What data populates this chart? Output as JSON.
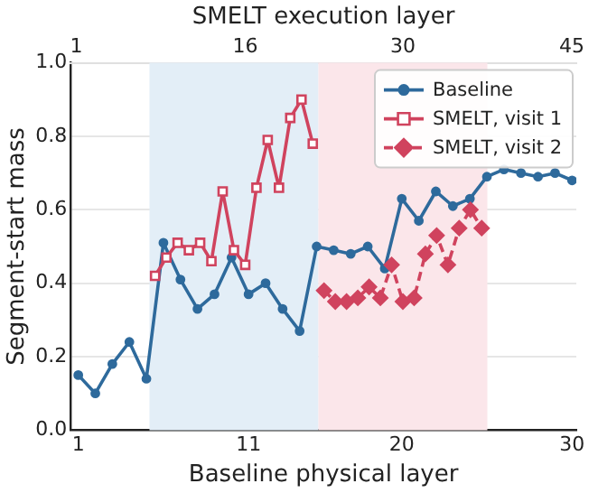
{
  "chart_data": {
    "type": "line",
    "xlabel": "Baseline physical layer",
    "x2label": "SMELT execution layer",
    "ylabel": "Segment-start mass",
    "xlim": [
      0.55,
      30.25
    ],
    "xticks": [
      1,
      11,
      20,
      30
    ],
    "x2lim": [
      0.5,
      45.4
    ],
    "x2ticks": [
      1,
      16,
      30,
      45
    ],
    "ylim": [
      0,
      1
    ],
    "yticks": [
      {
        "value": 0,
        "label": "0.0"
      },
      {
        "value": 0.2,
        "label": "0.2"
      },
      {
        "value": 0.4,
        "label": "0.4"
      },
      {
        "value": 0.6,
        "label": "0.6"
      },
      {
        "value": 0.8,
        "label": "0.8"
      },
      {
        "value": 1,
        "label": "1.0"
      }
    ],
    "grid": "y",
    "legend": "top right",
    "bands": [
      {
        "axis": "x2",
        "from": 7.5,
        "to": 22.5,
        "color": "#e3eef7"
      },
      {
        "axis": "x2",
        "from": 22.5,
        "to": 37.5,
        "color": "#fbe6ea"
      }
    ],
    "series": [
      {
        "name": "Baseline",
        "color": "#2e6a9c",
        "marker": "circle",
        "line_style": "solid",
        "x": [
          1,
          2,
          3,
          4,
          5,
          6,
          7,
          8,
          9,
          10,
          11,
          12,
          13,
          14,
          15,
          16,
          17,
          18,
          19,
          20,
          21,
          22,
          23,
          24,
          25,
          26,
          27,
          28,
          29,
          30
        ],
        "values": [
          0.15,
          0.1,
          0.18,
          0.24,
          0.14,
          0.51,
          0.41,
          0.33,
          0.37,
          0.47,
          0.37,
          0.4,
          0.33,
          0.27,
          0.5,
          0.49,
          0.48,
          0.5,
          0.44,
          0.63,
          0.57,
          0.65,
          0.61,
          0.63,
          0.69,
          0.71,
          0.7,
          0.69,
          0.7,
          0.68
        ]
      },
      {
        "name": "SMELT, visit 1",
        "color": "#d0435e",
        "axis": "x2",
        "marker": "square",
        "line_style": "solid",
        "x": [
          8,
          9,
          10,
          11,
          12,
          13,
          14,
          15,
          16,
          17,
          18,
          19,
          20,
          21,
          22
        ],
        "values": [
          0.42,
          0.47,
          0.51,
          0.49,
          0.51,
          0.46,
          0.65,
          0.49,
          0.45,
          0.66,
          0.79,
          0.66,
          0.85,
          0.9,
          0.78
        ]
      },
      {
        "name": "SMELT, visit 2",
        "color": "#d0435e",
        "axis": "x2",
        "marker": "diamond",
        "line_style": "dashed",
        "x": [
          23,
          24,
          25,
          26,
          27,
          28,
          29,
          30,
          31,
          32,
          33,
          34,
          35,
          36,
          37
        ],
        "values": [
          0.38,
          0.35,
          0.35,
          0.36,
          0.39,
          0.36,
          0.45,
          0.35,
          0.36,
          0.48,
          0.53,
          0.45,
          0.55,
          0.6,
          0.55
        ]
      }
    ]
  }
}
